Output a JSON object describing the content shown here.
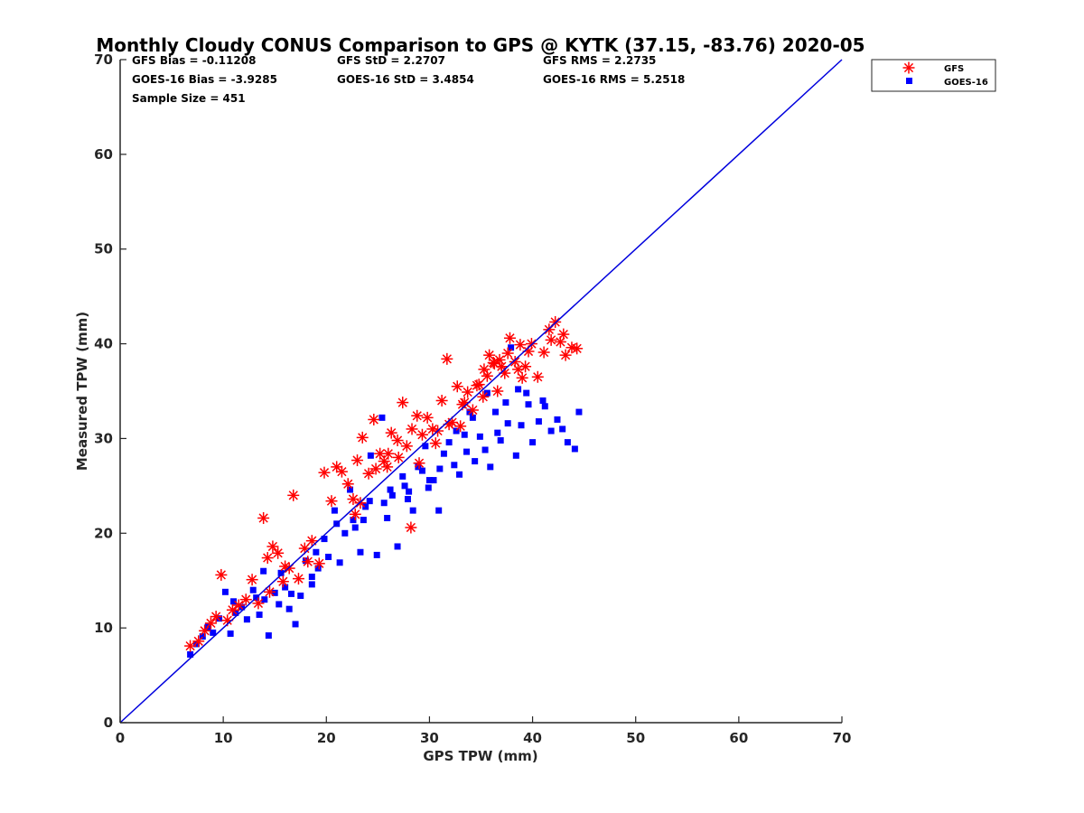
{
  "chart_data": {
    "type": "scatter",
    "title": "Monthly Cloudy CONUS Comparison to GPS @ KYTK (37.15, -83.76) 2020-05",
    "xlabel": "GPS TPW (mm)",
    "ylabel": "Measured TPW (mm)",
    "xlim": [
      0,
      70
    ],
    "ylim": [
      0,
      70
    ],
    "xticks": [
      0,
      10,
      20,
      30,
      40,
      50,
      60,
      70
    ],
    "yticks": [
      0,
      10,
      20,
      30,
      40,
      50,
      60,
      70
    ],
    "grid": false,
    "legend_position": "top-right (outside)",
    "stats": {
      "gfs_bias": "GFS Bias = -0.11208",
      "goes_bias": "GOES-16 Bias = -3.9285",
      "sample_size": "Sample Size = 451",
      "gfs_std": "GFS StD = 2.2707",
      "goes_std": "GOES-16 StD = 3.4854",
      "gfs_rms": "GFS RMS = 2.2735",
      "goes_rms": "GOES-16 RMS = 5.2518"
    },
    "reference_line": {
      "name": "1:1",
      "x": [
        0,
        70
      ],
      "y": [
        0,
        70
      ],
      "color": "#0000dd"
    },
    "series": [
      {
        "name": "GFS",
        "marker": "asterisk",
        "color": "#ff0000",
        "points": [
          [
            6.8,
            8.1
          ],
          [
            7.6,
            8.6
          ],
          [
            8.2,
            9.7
          ],
          [
            8.8,
            10.5
          ],
          [
            9.3,
            11.2
          ],
          [
            9.8,
            15.6
          ],
          [
            10.4,
            10.8
          ],
          [
            10.9,
            11.9
          ],
          [
            11.5,
            12.4
          ],
          [
            12.2,
            13.0
          ],
          [
            12.8,
            15.1
          ],
          [
            13.4,
            12.6
          ],
          [
            13.9,
            21.6
          ],
          [
            14.3,
            17.4
          ],
          [
            14.8,
            18.6
          ],
          [
            15.3,
            17.9
          ],
          [
            15.8,
            14.9
          ],
          [
            16.4,
            16.3
          ],
          [
            16.8,
            24.0
          ],
          [
            17.3,
            15.2
          ],
          [
            17.9,
            18.4
          ],
          [
            18.6,
            19.2
          ],
          [
            19.3,
            16.8
          ],
          [
            19.8,
            26.4
          ],
          [
            20.5,
            23.4
          ],
          [
            21.0,
            27.0
          ],
          [
            21.5,
            26.5
          ],
          [
            22.1,
            25.2
          ],
          [
            22.6,
            23.6
          ],
          [
            23.0,
            27.7
          ],
          [
            23.5,
            30.1
          ],
          [
            24.1,
            26.3
          ],
          [
            24.6,
            32.0
          ],
          [
            25.2,
            28.4
          ],
          [
            25.9,
            27.0
          ],
          [
            26.3,
            30.6
          ],
          [
            26.9,
            29.8
          ],
          [
            27.4,
            33.8
          ],
          [
            27.8,
            29.2
          ],
          [
            28.3,
            31.0
          ],
          [
            28.8,
            32.4
          ],
          [
            29.3,
            30.4
          ],
          [
            29.8,
            32.2
          ],
          [
            30.3,
            31.0
          ],
          [
            30.8,
            30.8
          ],
          [
            31.2,
            34.0
          ],
          [
            31.7,
            38.4
          ],
          [
            32.2,
            31.7
          ],
          [
            32.7,
            35.5
          ],
          [
            33.2,
            33.6
          ],
          [
            33.7,
            34.9
          ],
          [
            34.2,
            33.0
          ],
          [
            34.8,
            35.7
          ],
          [
            35.3,
            37.3
          ],
          [
            35.8,
            38.8
          ],
          [
            36.3,
            37.9
          ],
          [
            36.8,
            38.3
          ],
          [
            37.3,
            36.9
          ],
          [
            37.8,
            40.6
          ],
          [
            38.3,
            38.1
          ],
          [
            38.8,
            39.9
          ],
          [
            39.3,
            37.6
          ],
          [
            39.9,
            40.0
          ],
          [
            40.5,
            36.5
          ],
          [
            41.1,
            39.1
          ],
          [
            41.6,
            41.5
          ],
          [
            42.2,
            42.3
          ],
          [
            42.7,
            40.2
          ],
          [
            43.2,
            38.8
          ],
          [
            43.8,
            39.6
          ],
          [
            44.3,
            39.5
          ],
          [
            14.5,
            13.8
          ],
          [
            16.0,
            16.5
          ],
          [
            18.2,
            17.0
          ],
          [
            22.8,
            22.0
          ],
          [
            24.8,
            26.8
          ],
          [
            26.0,
            28.4
          ],
          [
            27.0,
            28.0
          ],
          [
            29.0,
            27.4
          ],
          [
            30.6,
            29.5
          ],
          [
            31.9,
            31.5
          ],
          [
            33.4,
            33.8
          ],
          [
            34.6,
            35.6
          ],
          [
            35.6,
            36.6
          ],
          [
            36.6,
            35.0
          ],
          [
            37.6,
            39.0
          ],
          [
            38.6,
            37.3
          ],
          [
            39.6,
            39.2
          ],
          [
            28.2,
            20.6
          ],
          [
            33.0,
            31.3
          ],
          [
            35.2,
            34.4
          ],
          [
            36.2,
            38.0
          ],
          [
            37.0,
            37.6
          ],
          [
            39.0,
            36.4
          ],
          [
            41.8,
            40.4
          ],
          [
            43.0,
            41.0
          ],
          [
            23.3,
            23.2
          ],
          [
            25.6,
            27.6
          ]
        ]
      },
      {
        "name": "GOES-16",
        "marker": "square",
        "color": "#0000ff",
        "points": [
          [
            6.8,
            7.2
          ],
          [
            7.4,
            8.3
          ],
          [
            8.0,
            9.1
          ],
          [
            8.5,
            10.1
          ],
          [
            9.0,
            9.5
          ],
          [
            9.6,
            11.0
          ],
          [
            10.2,
            13.8
          ],
          [
            10.7,
            9.4
          ],
          [
            11.2,
            11.6
          ],
          [
            11.8,
            12.2
          ],
          [
            12.3,
            10.9
          ],
          [
            12.9,
            14.0
          ],
          [
            13.5,
            11.4
          ],
          [
            13.9,
            16.0
          ],
          [
            14.4,
            9.2
          ],
          [
            15.0,
            13.7
          ],
          [
            15.4,
            12.5
          ],
          [
            16.0,
            14.3
          ],
          [
            16.4,
            12.0
          ],
          [
            17.0,
            10.4
          ],
          [
            17.5,
            13.4
          ],
          [
            18.0,
            17.1
          ],
          [
            18.6,
            15.4
          ],
          [
            19.2,
            16.3
          ],
          [
            19.8,
            19.4
          ],
          [
            20.2,
            17.5
          ],
          [
            20.8,
            22.4
          ],
          [
            21.3,
            16.9
          ],
          [
            21.8,
            20.0
          ],
          [
            22.3,
            24.6
          ],
          [
            22.8,
            20.6
          ],
          [
            23.3,
            18.0
          ],
          [
            23.8,
            22.8
          ],
          [
            24.3,
            28.2
          ],
          [
            24.9,
            17.7
          ],
          [
            25.4,
            32.2
          ],
          [
            25.9,
            21.6
          ],
          [
            26.4,
            24.0
          ],
          [
            26.9,
            18.6
          ],
          [
            27.4,
            26.0
          ],
          [
            27.9,
            23.6
          ],
          [
            28.4,
            22.4
          ],
          [
            28.9,
            27.0
          ],
          [
            29.3,
            26.6
          ],
          [
            29.9,
            24.8
          ],
          [
            30.4,
            25.6
          ],
          [
            30.9,
            22.4
          ],
          [
            31.4,
            28.4
          ],
          [
            31.9,
            29.6
          ],
          [
            32.4,
            27.2
          ],
          [
            32.9,
            26.2
          ],
          [
            33.4,
            30.4
          ],
          [
            33.9,
            32.8
          ],
          [
            34.4,
            27.6
          ],
          [
            34.9,
            30.2
          ],
          [
            35.4,
            28.8
          ],
          [
            35.9,
            27.0
          ],
          [
            36.4,
            32.8
          ],
          [
            36.9,
            29.8
          ],
          [
            37.4,
            33.8
          ],
          [
            37.9,
            39.6
          ],
          [
            38.4,
            28.2
          ],
          [
            38.9,
            31.4
          ],
          [
            39.4,
            34.8
          ],
          [
            40.0,
            29.6
          ],
          [
            40.6,
            31.8
          ],
          [
            41.2,
            33.4
          ],
          [
            41.8,
            30.8
          ],
          [
            42.4,
            32.0
          ],
          [
            42.9,
            31.0
          ],
          [
            43.4,
            29.6
          ],
          [
            44.1,
            28.9
          ],
          [
            44.5,
            32.8
          ],
          [
            11.0,
            12.8
          ],
          [
            13.2,
            13.2
          ],
          [
            15.6,
            15.8
          ],
          [
            18.6,
            14.6
          ],
          [
            21.0,
            21.0
          ],
          [
            22.6,
            21.4
          ],
          [
            24.2,
            23.4
          ],
          [
            26.2,
            24.6
          ],
          [
            27.6,
            25.0
          ],
          [
            29.6,
            29.2
          ],
          [
            31.0,
            26.8
          ],
          [
            32.6,
            30.8
          ],
          [
            34.2,
            32.2
          ],
          [
            35.6,
            34.8
          ],
          [
            36.6,
            30.6
          ],
          [
            37.6,
            31.6
          ],
          [
            38.6,
            35.2
          ],
          [
            39.6,
            33.6
          ],
          [
            41.0,
            34.0
          ],
          [
            14.0,
            13.0
          ],
          [
            16.6,
            13.6
          ],
          [
            19.0,
            18.0
          ],
          [
            23.6,
            21.4
          ],
          [
            25.6,
            23.2
          ],
          [
            28.0,
            24.4
          ],
          [
            30.0,
            25.6
          ],
          [
            33.6,
            28.6
          ]
        ]
      }
    ]
  }
}
